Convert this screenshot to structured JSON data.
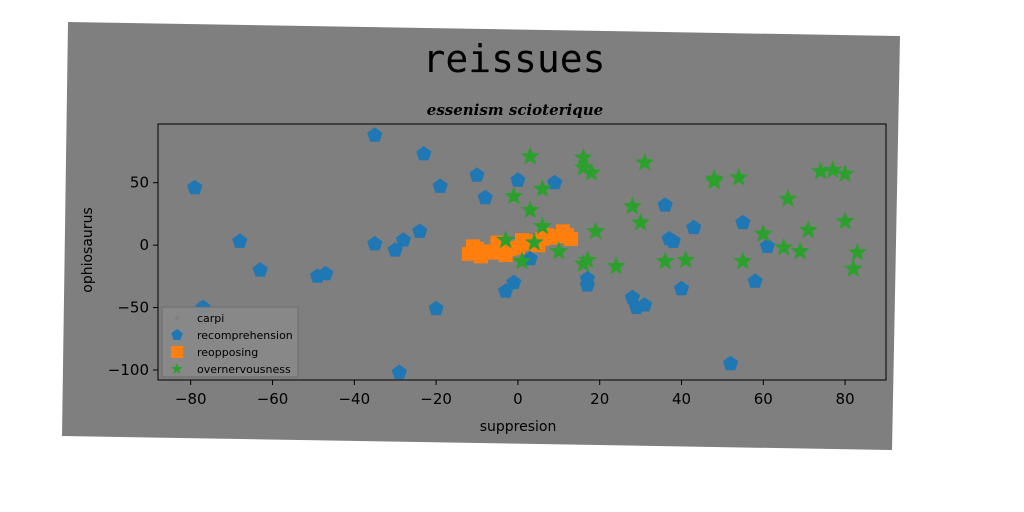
{
  "chart_data": {
    "type": "scatter",
    "title": "reissues",
    "subtitle": "essenism scioterique",
    "xlabel": "suppresion",
    "ylabel": "ophiosaurus",
    "xlim": [
      -88,
      90
    ],
    "ylim": [
      -108,
      97
    ],
    "xticks": [
      -80,
      -60,
      -40,
      -20,
      0,
      20,
      40,
      60,
      80
    ],
    "yticks": [
      -100,
      -50,
      0,
      50
    ],
    "grid": false,
    "legend_position": "lower-left",
    "background": "#7f7f7f",
    "series": [
      {
        "name": "carpi",
        "marker": "point",
        "color": "#7f7f7f",
        "points": []
      },
      {
        "name": "recomprehension",
        "marker": "pentagon",
        "color": "#1f77b4",
        "points": [
          [
            -79,
            46
          ],
          [
            -35,
            88
          ],
          [
            -23,
            73
          ],
          [
            -19,
            47
          ],
          [
            -68,
            3
          ],
          [
            -63,
            -20
          ],
          [
            -49,
            -25
          ],
          [
            -47,
            -23
          ],
          [
            -35,
            1
          ],
          [
            -30,
            -4
          ],
          [
            -28,
            4
          ],
          [
            -24,
            11
          ],
          [
            -20,
            -51
          ],
          [
            -29,
            -102
          ],
          [
            -77,
            -50
          ],
          [
            -10,
            56
          ],
          [
            -8,
            38
          ],
          [
            0,
            52
          ],
          [
            9,
            50
          ],
          [
            -3,
            -37
          ],
          [
            -1,
            -30
          ],
          [
            3,
            -11
          ],
          [
            4,
            3
          ],
          [
            17,
            -27
          ],
          [
            17,
            -32
          ],
          [
            28,
            -42
          ],
          [
            29,
            -50
          ],
          [
            31,
            -48
          ],
          [
            36,
            32
          ],
          [
            37,
            5
          ],
          [
            38,
            3
          ],
          [
            40,
            -35
          ],
          [
            43,
            14
          ],
          [
            52,
            -95
          ],
          [
            55,
            18
          ],
          [
            58,
            -29
          ],
          [
            61,
            -1
          ]
        ]
      },
      {
        "name": "reopposing",
        "marker": "square",
        "color": "#ff7f0e",
        "points": [
          [
            -12,
            -7
          ],
          [
            -10,
            -3
          ],
          [
            -8,
            -5
          ],
          [
            -6,
            -6
          ],
          [
            -4,
            -4
          ],
          [
            -2,
            -3
          ],
          [
            0,
            -2
          ],
          [
            2,
            1
          ],
          [
            4,
            3
          ],
          [
            6,
            5
          ],
          [
            8,
            6
          ],
          [
            10,
            7
          ],
          [
            12,
            8
          ],
          [
            13,
            5
          ],
          [
            -11,
            -1
          ],
          [
            -5,
            2
          ],
          [
            1,
            4
          ],
          [
            7,
            8
          ],
          [
            11,
            11
          ],
          [
            -9,
            -9
          ],
          [
            -3,
            -8
          ],
          [
            5,
            0
          ]
        ]
      },
      {
        "name": "overnervousness",
        "marker": "star",
        "color": "#2ca02c",
        "points": [
          [
            3,
            71
          ],
          [
            16,
            70
          ],
          [
            16,
            62
          ],
          [
            18,
            58
          ],
          [
            31,
            66
          ],
          [
            -1,
            39
          ],
          [
            3,
            28
          ],
          [
            6,
            45
          ],
          [
            6,
            15
          ],
          [
            -3,
            4
          ],
          [
            1,
            -13
          ],
          [
            4,
            2
          ],
          [
            10,
            -5
          ],
          [
            16,
            -15
          ],
          [
            17,
            -12
          ],
          [
            19,
            11
          ],
          [
            24,
            -17
          ],
          [
            28,
            31
          ],
          [
            30,
            18
          ],
          [
            36,
            -13
          ],
          [
            41,
            -12
          ],
          [
            48,
            53
          ],
          [
            48,
            51
          ],
          [
            54,
            54
          ],
          [
            55,
            -13
          ],
          [
            60,
            9
          ],
          [
            65,
            -2
          ],
          [
            66,
            37
          ],
          [
            69,
            -5
          ],
          [
            71,
            12
          ],
          [
            74,
            59
          ],
          [
            77,
            60
          ],
          [
            80,
            57
          ],
          [
            80,
            19
          ],
          [
            83,
            -6
          ],
          [
            82,
            -19
          ]
        ]
      }
    ]
  }
}
